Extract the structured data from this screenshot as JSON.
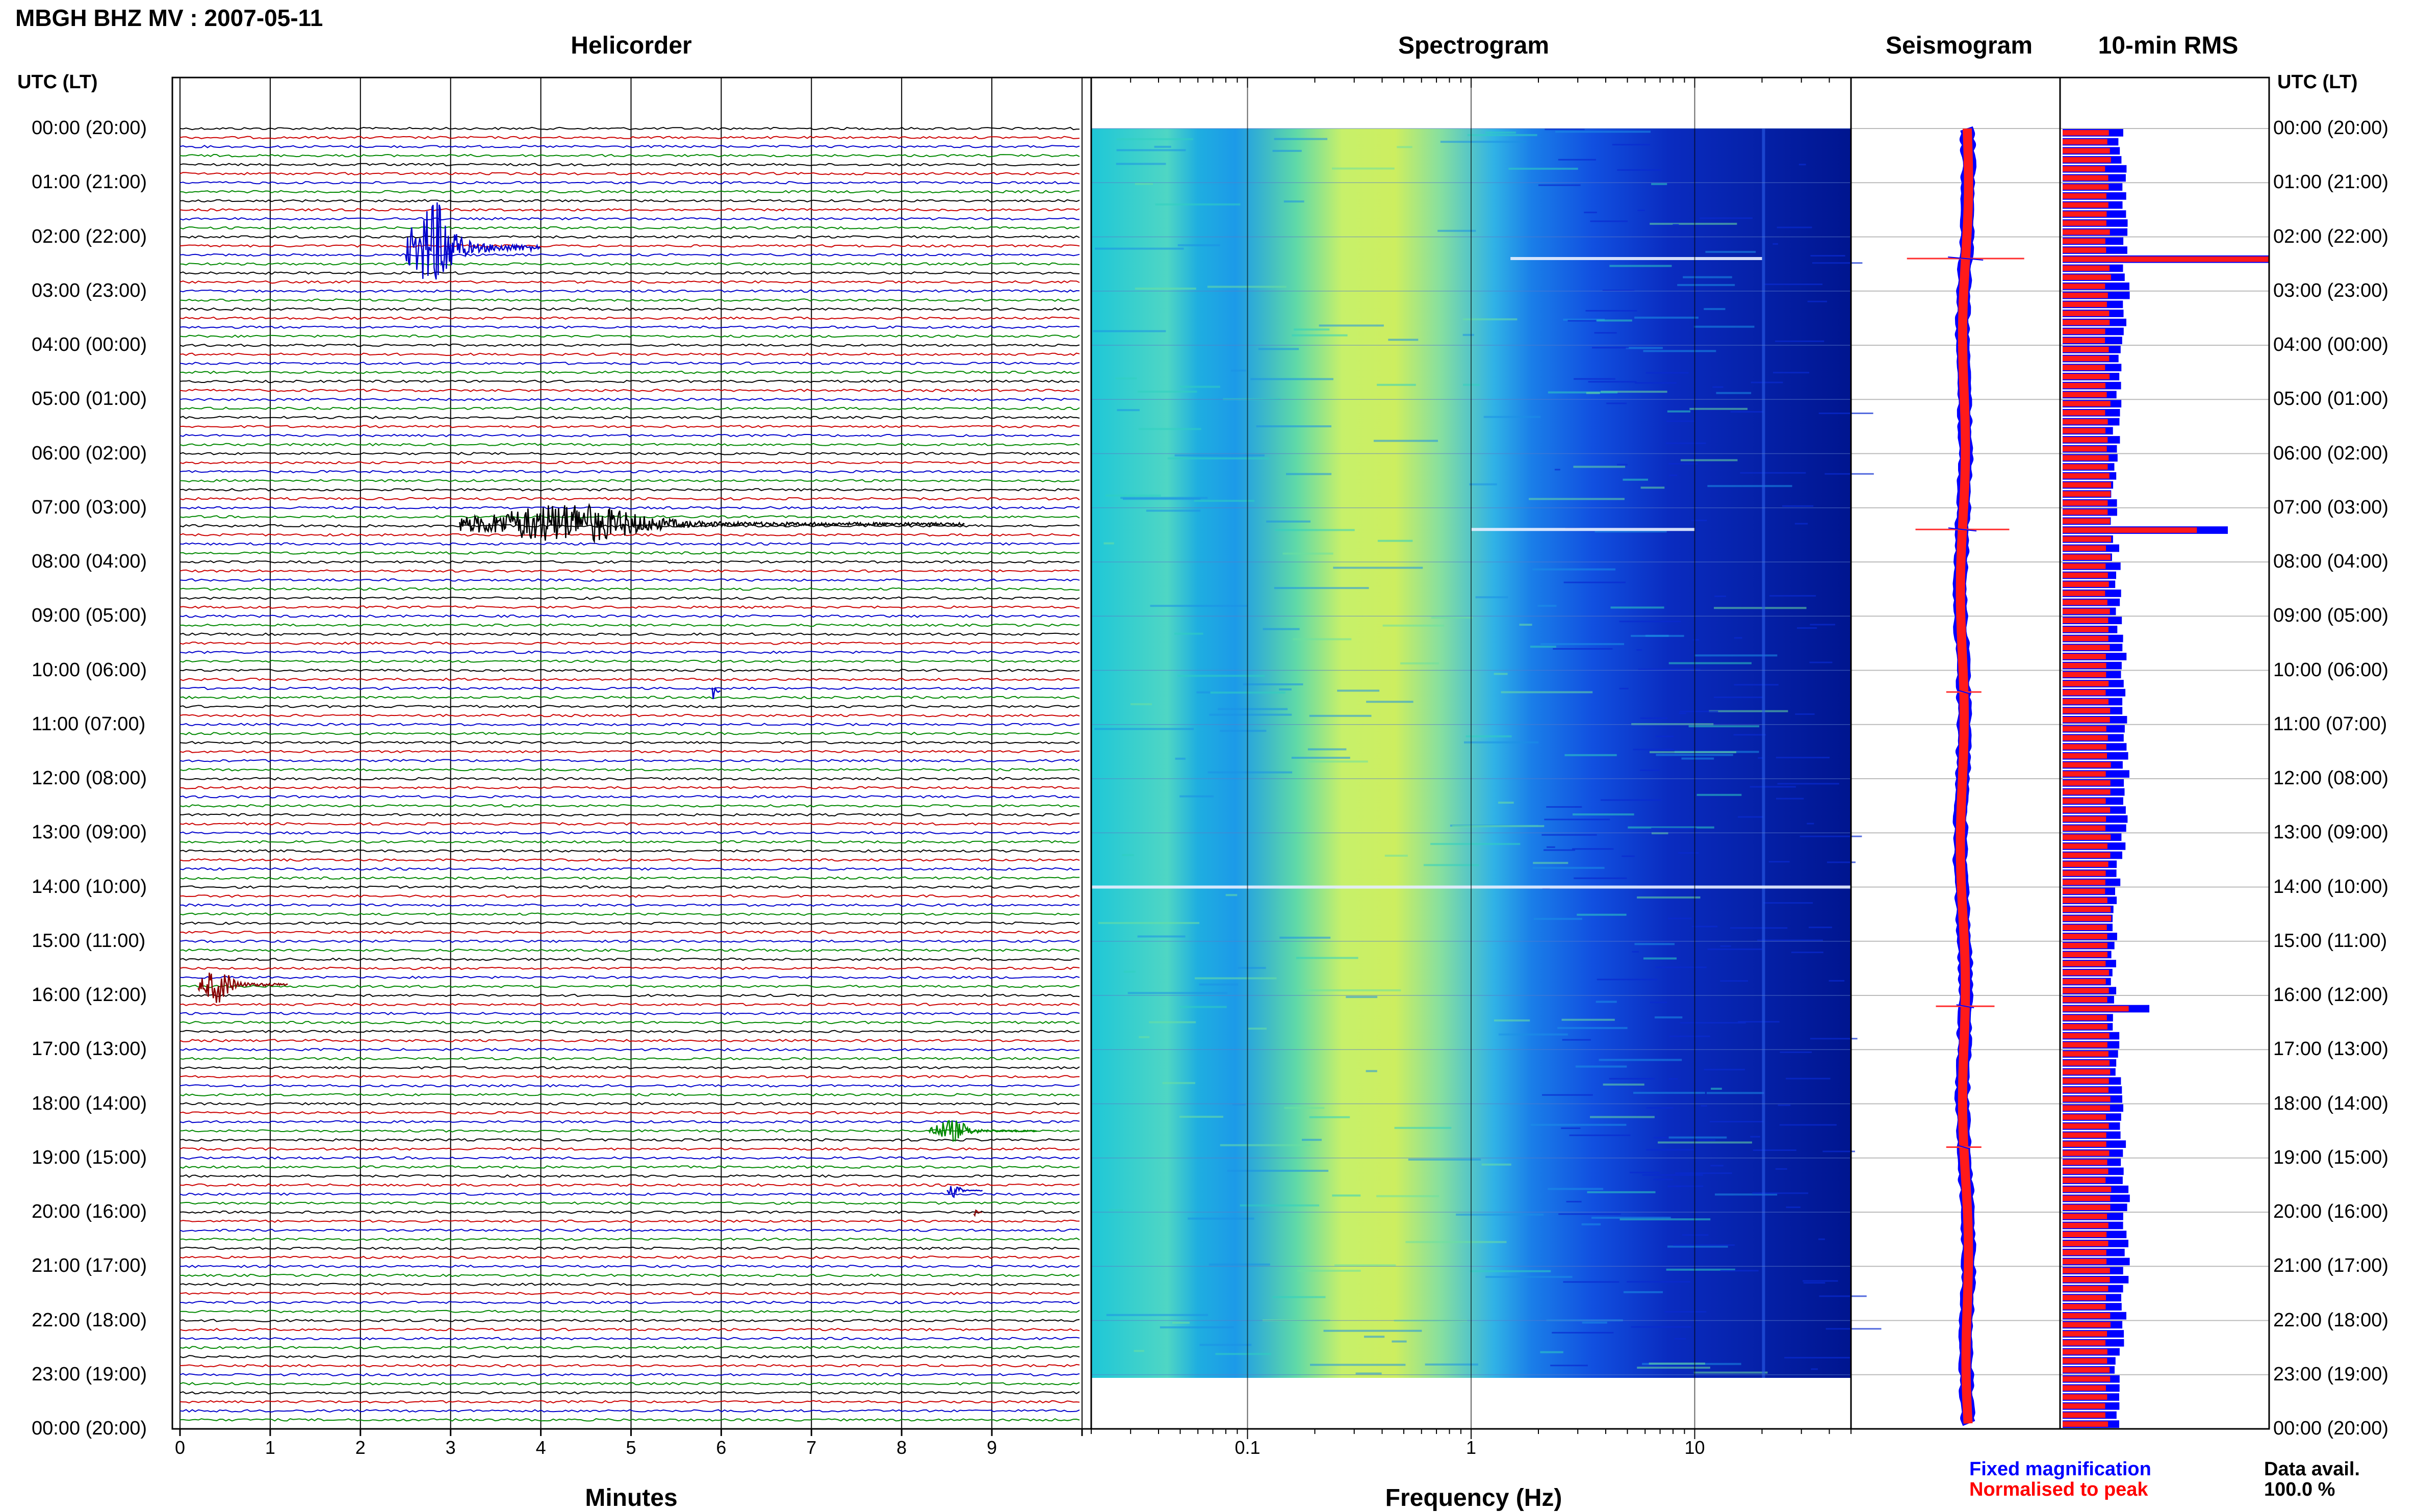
{
  "title": "MBGH BHZ MV : 2007-05-11",
  "utc_header": "UTC (LT)",
  "panels": {
    "helicorder": "Helicorder",
    "spectrogram": "Spectrogram",
    "seismogram": "Seismogram",
    "rms": "10-min RMS"
  },
  "axis_labels": {
    "helicorder_x": "Minutes",
    "spectrogram_x": "Frequency (Hz)"
  },
  "legend": {
    "fixed": "Fixed magnification",
    "normalised": "Normalised to peak",
    "fixed_color": "#0000ff",
    "normalised_color": "#ff0000"
  },
  "data_avail": {
    "label": "Data avail.",
    "value": "100.0 %"
  },
  "chart_data": {
    "type": "helicorder",
    "station": "MBGH",
    "channel": "BHZ",
    "network": "MV",
    "date": "2007-05-11",
    "time_labels": [
      "00:00 (20:00)",
      "01:00 (21:00)",
      "02:00 (22:00)",
      "03:00 (23:00)",
      "04:00 (00:00)",
      "05:00 (01:00)",
      "06:00 (02:00)",
      "07:00 (03:00)",
      "08:00 (04:00)",
      "09:00 (05:00)",
      "10:00 (06:00)",
      "11:00 (07:00)",
      "12:00 (08:00)",
      "13:00 (09:00)",
      "14:00 (10:00)",
      "15:00 (11:00)",
      "16:00 (12:00)",
      "17:00 (13:00)",
      "18:00 (14:00)",
      "19:00 (15:00)",
      "20:00 (16:00)",
      "21:00 (17:00)",
      "22:00 (18:00)",
      "23:00 (19:00)",
      "00:00 (20:00)"
    ],
    "helicorder": {
      "x_ticks": [
        0,
        1,
        2,
        3,
        4,
        5,
        6,
        7,
        8,
        9
      ],
      "xlim": [
        0,
        10
      ],
      "rows_per_hour": 6,
      "trace_colors": [
        "#000000",
        "#cc0000",
        "#0000cc",
        "#008800"
      ],
      "events": [
        {
          "hour": 2.2,
          "start_min": 2.5,
          "end_min": 4.0,
          "amplitude": 4.0,
          "color": "#0000cc"
        },
        {
          "hour": 7.3,
          "start_min": 3.1,
          "end_min": 8.7,
          "amplitude": 1.8,
          "color": "#000000"
        },
        {
          "hour": 10.4,
          "start_min": 5.9,
          "end_min": 6.0,
          "amplitude": 1.2,
          "color": "#0000cc"
        },
        {
          "hour": 15.8,
          "start_min": 0.2,
          "end_min": 1.2,
          "amplitude": 1.6,
          "color": "#880000"
        },
        {
          "hour": 18.5,
          "start_min": 8.3,
          "end_min": 9.5,
          "amplitude": 1.0,
          "color": "#008800"
        },
        {
          "hour": 19.6,
          "start_min": 8.5,
          "end_min": 8.9,
          "amplitude": 0.6,
          "color": "#0000cc"
        },
        {
          "hour": 20.0,
          "start_min": 8.8,
          "end_min": 8.9,
          "amplitude": 0.5,
          "color": "#880000"
        }
      ]
    },
    "spectrogram": {
      "x_scale": "log",
      "xlim": [
        0.02,
        50
      ],
      "x_ticks": [
        0.1,
        1,
        10
      ],
      "x_tick_labels": [
        "0.1",
        "1",
        "10"
      ],
      "colormap": "jet",
      "bright_lines": [
        {
          "hour": 2.4,
          "fmin": 1.5,
          "fmax": 20
        },
        {
          "hour": 7.4,
          "fmin": 1.0,
          "fmax": 10
        },
        {
          "hour": 14.0,
          "fmin": 0.02,
          "fmax": 50
        }
      ]
    },
    "seismogram": {
      "spikes": [
        {
          "hour": 2.4,
          "width": 1.0
        },
        {
          "hour": 7.4,
          "width": 0.8
        },
        {
          "hour": 10.4,
          "width": 0.3
        },
        {
          "hour": 16.2,
          "width": 0.5
        },
        {
          "hour": 18.8,
          "width": 0.3
        }
      ]
    },
    "rms": {
      "series": [
        {
          "name": "Fixed magnification"
        },
        {
          "name": "Normalised to peak"
        }
      ],
      "peaks": [
        {
          "hour": 2.4,
          "fixed": 1.0,
          "normalised": 1.0
        },
        {
          "hour": 7.4,
          "fixed": 0.8,
          "normalised": 0.65
        },
        {
          "hour": 16.2,
          "fixed": 0.42,
          "normalised": 0.32
        }
      ],
      "baseline": {
        "fixed": 0.28,
        "normalised": 0.22
      }
    }
  }
}
